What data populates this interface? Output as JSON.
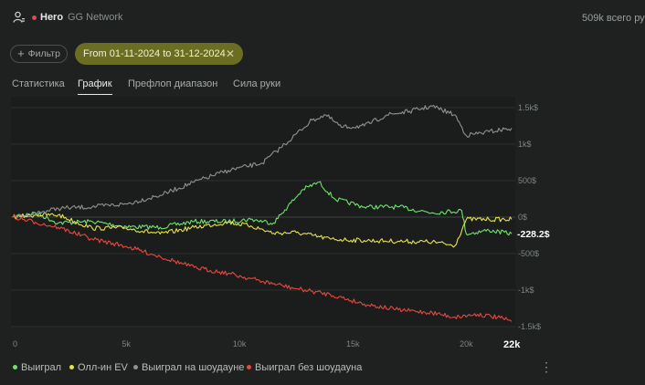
{
  "header": {
    "player": "Hero",
    "network": "GG Network",
    "total_label": "509k всего ру"
  },
  "filters": {
    "filter_button": "Фильтр",
    "date_range": "From 01-11-2024 to 31-12-2024"
  },
  "tabs": [
    {
      "label": "Статистика",
      "active": false
    },
    {
      "label": "График",
      "active": true
    },
    {
      "label": "Префлоп диапазон",
      "active": false
    },
    {
      "label": "Сила руки",
      "active": false
    }
  ],
  "chart_data": {
    "type": "line",
    "x_ticks": [
      "0",
      "5k",
      "10k",
      "15k",
      "20k"
    ],
    "x_end_label": "22k",
    "y_ticks": [
      "1.5k$",
      "1k$",
      "500$",
      "0$",
      "-500$",
      "-1k$",
      "-1.5k$"
    ],
    "xlim": [
      0,
      22000
    ],
    "ylim": [
      -1500,
      1500
    ],
    "current_value_label": "-228.2$",
    "series": [
      {
        "name": "Выиграл",
        "color": "#6fe36a",
        "points": [
          [
            0,
            0
          ],
          [
            1000,
            60
          ],
          [
            2000,
            -80
          ],
          [
            3500,
            -60
          ],
          [
            5000,
            -130
          ],
          [
            6500,
            -140
          ],
          [
            8000,
            -60
          ],
          [
            9500,
            -60
          ],
          [
            10500,
            -30
          ],
          [
            11500,
            -80
          ],
          [
            12000,
            100
          ],
          [
            12800,
            380
          ],
          [
            13500,
            480
          ],
          [
            14200,
            250
          ],
          [
            15500,
            140
          ],
          [
            17000,
            140
          ],
          [
            18500,
            60
          ],
          [
            19800,
            90
          ],
          [
            20000,
            -230
          ],
          [
            21000,
            -180
          ],
          [
            22000,
            -228
          ]
        ]
      },
      {
        "name": "Олл-ин EV",
        "color": "#e8e24c",
        "points": [
          [
            0,
            0
          ],
          [
            1000,
            30
          ],
          [
            2000,
            30
          ],
          [
            3500,
            -150
          ],
          [
            5000,
            -150
          ],
          [
            6500,
            -230
          ],
          [
            8000,
            -140
          ],
          [
            9500,
            -70
          ],
          [
            10500,
            -120
          ],
          [
            11500,
            -220
          ],
          [
            12500,
            -210
          ],
          [
            14000,
            -300
          ],
          [
            15500,
            -320
          ],
          [
            17000,
            -330
          ],
          [
            18500,
            -340
          ],
          [
            19500,
            -390
          ],
          [
            20000,
            -30
          ],
          [
            21000,
            -30
          ],
          [
            22000,
            -30
          ]
        ]
      },
      {
        "name": "Выиграл на шоудауне",
        "color": "#8f9390",
        "points": [
          [
            0,
            0
          ],
          [
            1000,
            50
          ],
          [
            2000,
            120
          ],
          [
            3500,
            140
          ],
          [
            5000,
            180
          ],
          [
            6500,
            300
          ],
          [
            8000,
            480
          ],
          [
            9500,
            640
          ],
          [
            11000,
            740
          ],
          [
            12000,
            1000
          ],
          [
            13200,
            1330
          ],
          [
            13800,
            1400
          ],
          [
            14500,
            1230
          ],
          [
            15500,
            1250
          ],
          [
            16500,
            1400
          ],
          [
            17500,
            1450
          ],
          [
            18500,
            1520
          ],
          [
            19500,
            1400
          ],
          [
            20000,
            1120
          ],
          [
            21000,
            1170
          ],
          [
            22000,
            1220
          ]
        ]
      },
      {
        "name": "Выиграл без шоудауна",
        "color": "#e8483e",
        "points": [
          [
            0,
            0
          ],
          [
            1000,
            -70
          ],
          [
            2000,
            -140
          ],
          [
            3500,
            -300
          ],
          [
            5000,
            -400
          ],
          [
            6500,
            -540
          ],
          [
            8000,
            -690
          ],
          [
            9500,
            -770
          ],
          [
            11000,
            -880
          ],
          [
            12500,
            -980
          ],
          [
            14000,
            -1060
          ],
          [
            15500,
            -1190
          ],
          [
            17000,
            -1270
          ],
          [
            18500,
            -1310
          ],
          [
            19500,
            -1370
          ],
          [
            20500,
            -1330
          ],
          [
            21500,
            -1380
          ],
          [
            22000,
            -1430
          ]
        ]
      }
    ]
  },
  "legend": [
    {
      "label": "Выиграл",
      "color": "#6fe36a"
    },
    {
      "label": "Олл-ин EV",
      "color": "#e8e24c"
    },
    {
      "label": "Выиграл на шоудауне",
      "color": "#8f9390"
    },
    {
      "label": "Выиграл без шоудауна",
      "color": "#e8483e"
    }
  ],
  "icons": {
    "user": "user-settings-icon",
    "more": "more-vertical-icon",
    "close": "close-icon",
    "plus": "plus-icon"
  }
}
